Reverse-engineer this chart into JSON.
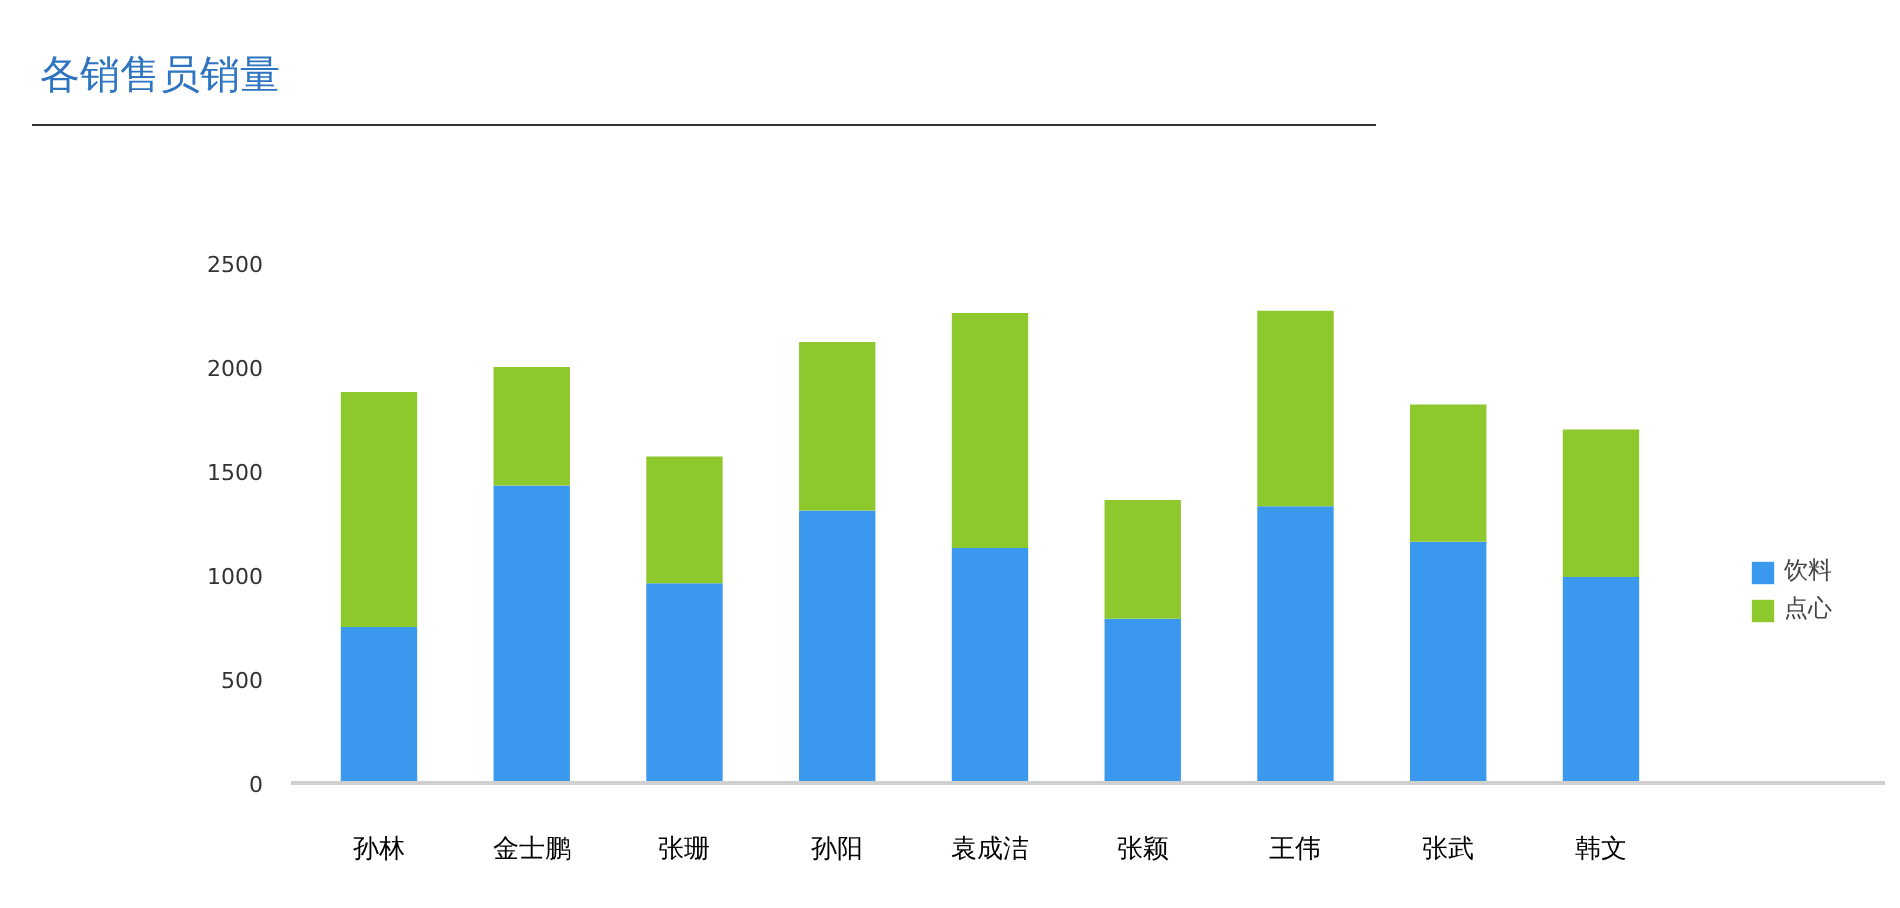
{
  "chart_data": {
    "type": "bar",
    "title": "各销售员销量",
    "categories": [
      "孙林",
      "金士鹏",
      "张珊",
      "孙阳",
      "袁成洁",
      "张颖",
      "王伟",
      "张武",
      "韩文"
    ],
    "series": [
      {
        "name": "饮料",
        "color": "#3a98ee",
        "values": [
          750,
          1430,
          960,
          1310,
          1130,
          790,
          1330,
          1160,
          990
        ]
      },
      {
        "name": "点心",
        "color": "#8dc92c",
        "values": [
          1130,
          570,
          610,
          810,
          1130,
          570,
          940,
          660,
          710
        ]
      }
    ],
    "stacked": true,
    "ylim": [
      0,
      2500
    ],
    "yticks": [
      0,
      500,
      1000,
      1500,
      2000,
      2500
    ],
    "grid": false,
    "legend": "right"
  }
}
